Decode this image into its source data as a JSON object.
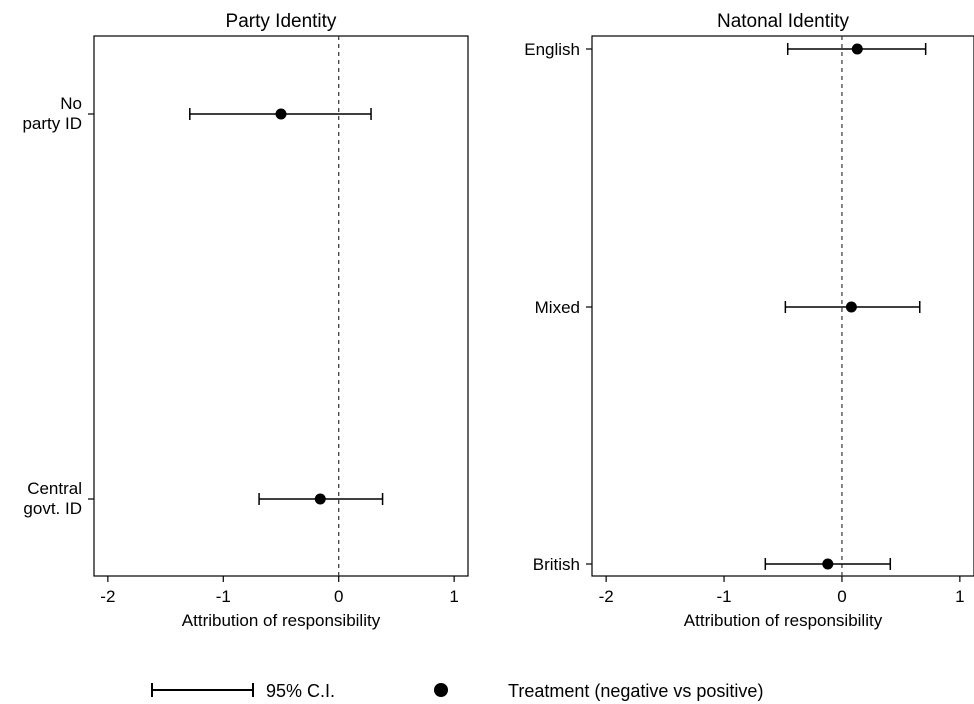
{
  "chart_data": [
    {
      "type": "scatter",
      "subtype": "dot-and-whisker",
      "title": "Party Identity",
      "xlabel": "Attribution of responsibility",
      "xlim": [
        -2.12,
        1.12
      ],
      "xticks": [
        -2,
        -1,
        0,
        1
      ],
      "xtick_labels": [
        "-2",
        "-1",
        "0",
        "1"
      ],
      "reference_line": {
        "x": 0,
        "style": "dashed"
      },
      "categories": [
        {
          "label_lines": [
            "No",
            "party ID"
          ],
          "estimate": -0.5,
          "ci": [
            -1.29,
            0.28
          ]
        },
        {
          "label_lines": [
            "Central",
            "govt. ID"
          ],
          "estimate": -0.16,
          "ci": [
            -0.69,
            0.38
          ]
        }
      ]
    },
    {
      "type": "scatter",
      "subtype": "dot-and-whisker",
      "title": "Natonal Identity",
      "xlabel": "Attribution of responsibility",
      "xlim": [
        -2.12,
        1.12
      ],
      "xticks": [
        -2,
        -1,
        0,
        1
      ],
      "xtick_labels": [
        "-2",
        "-1",
        "0",
        "1"
      ],
      "reference_line": {
        "x": 0,
        "style": "dashed"
      },
      "categories": [
        {
          "label_lines": [
            "English"
          ],
          "estimate": 0.13,
          "ci": [
            -0.46,
            0.71
          ]
        },
        {
          "label_lines": [
            "Mixed"
          ],
          "estimate": 0.08,
          "ci": [
            -0.48,
            0.66
          ]
        },
        {
          "label_lines": [
            "British"
          ],
          "estimate": -0.12,
          "ci": [
            -0.65,
            0.41
          ]
        }
      ]
    }
  ],
  "legend": {
    "placement": "bottom",
    "ci_label": "95% C.I.",
    "point_label": "Treatment (negative vs positive)"
  },
  "colors": {
    "ink": "#000000",
    "background": "#ffffff"
  }
}
